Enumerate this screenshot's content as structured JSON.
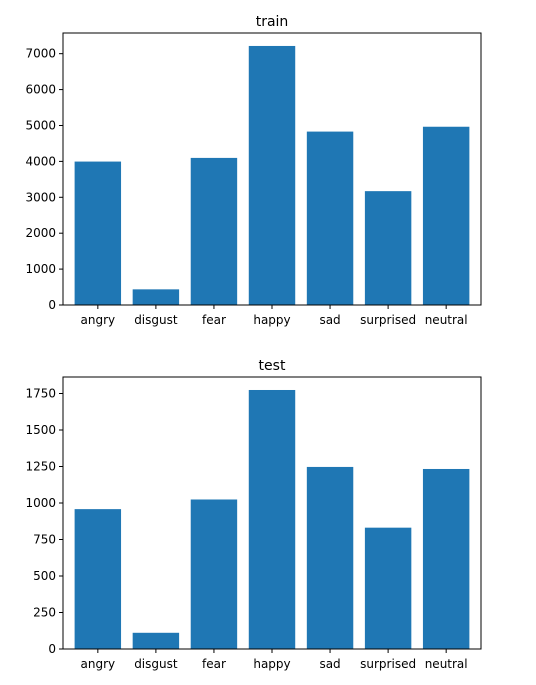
{
  "chart_data": [
    {
      "type": "bar",
      "title": "train",
      "xlabel": "",
      "ylabel": "",
      "categories": [
        "angry",
        "disgust",
        "fear",
        "happy",
        "sad",
        "surprised",
        "neutral"
      ],
      "values": [
        3995,
        436,
        4097,
        7215,
        4830,
        3171,
        4965
      ],
      "ylim": [
        0,
        7576
      ],
      "yticks": [
        0,
        1000,
        2000,
        3000,
        4000,
        5000,
        6000,
        7000
      ],
      "ytick_labels": [
        "0",
        "1000",
        "2000",
        "3000",
        "4000",
        "5000",
        "6000",
        "7000"
      ],
      "bar_color": "#1f77b4",
      "grid": false,
      "legend": "none"
    },
    {
      "type": "bar",
      "title": "test",
      "xlabel": "",
      "ylabel": "",
      "categories": [
        "angry",
        "disgust",
        "fear",
        "happy",
        "sad",
        "surprised",
        "neutral"
      ],
      "values": [
        958,
        111,
        1024,
        1774,
        1247,
        831,
        1233
      ],
      "ylim": [
        0,
        1863
      ],
      "yticks": [
        0,
        250,
        500,
        750,
        1000,
        1250,
        1500,
        1750
      ],
      "ytick_labels": [
        "0",
        "250",
        "500",
        "750",
        "1000",
        "1250",
        "1500",
        "1750"
      ],
      "bar_color": "#1f77b4",
      "grid": false,
      "legend": "none"
    }
  ]
}
